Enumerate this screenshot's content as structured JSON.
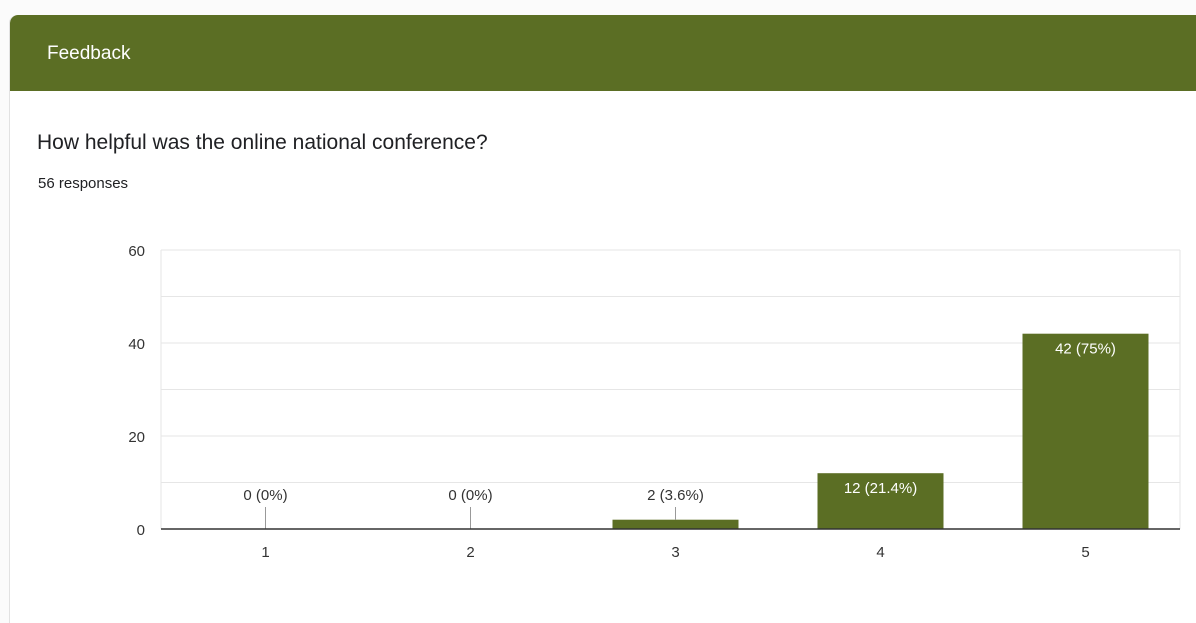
{
  "card": {
    "title": "Feedback"
  },
  "question": {
    "text": "How helpful was the online national conference?",
    "responses": "56 responses"
  },
  "colors": {
    "accent": "#5b6e24",
    "bar": "#5b6e24",
    "grid": "#e6e6e6",
    "axis": "#333333"
  },
  "chart_data": {
    "type": "bar",
    "categories": [
      "1",
      "2",
      "3",
      "4",
      "5"
    ],
    "values": [
      0,
      0,
      2,
      12,
      42
    ],
    "data_labels": [
      "0 (0%)",
      "0 (0%)",
      "2 (3.6%)",
      "12 (21.4%)",
      "42 (75%)"
    ],
    "ylim": [
      0,
      60
    ],
    "yticks": [
      0,
      20,
      40,
      60
    ],
    "grid": true,
    "legend": "none",
    "xlabel": "",
    "ylabel": ""
  }
}
